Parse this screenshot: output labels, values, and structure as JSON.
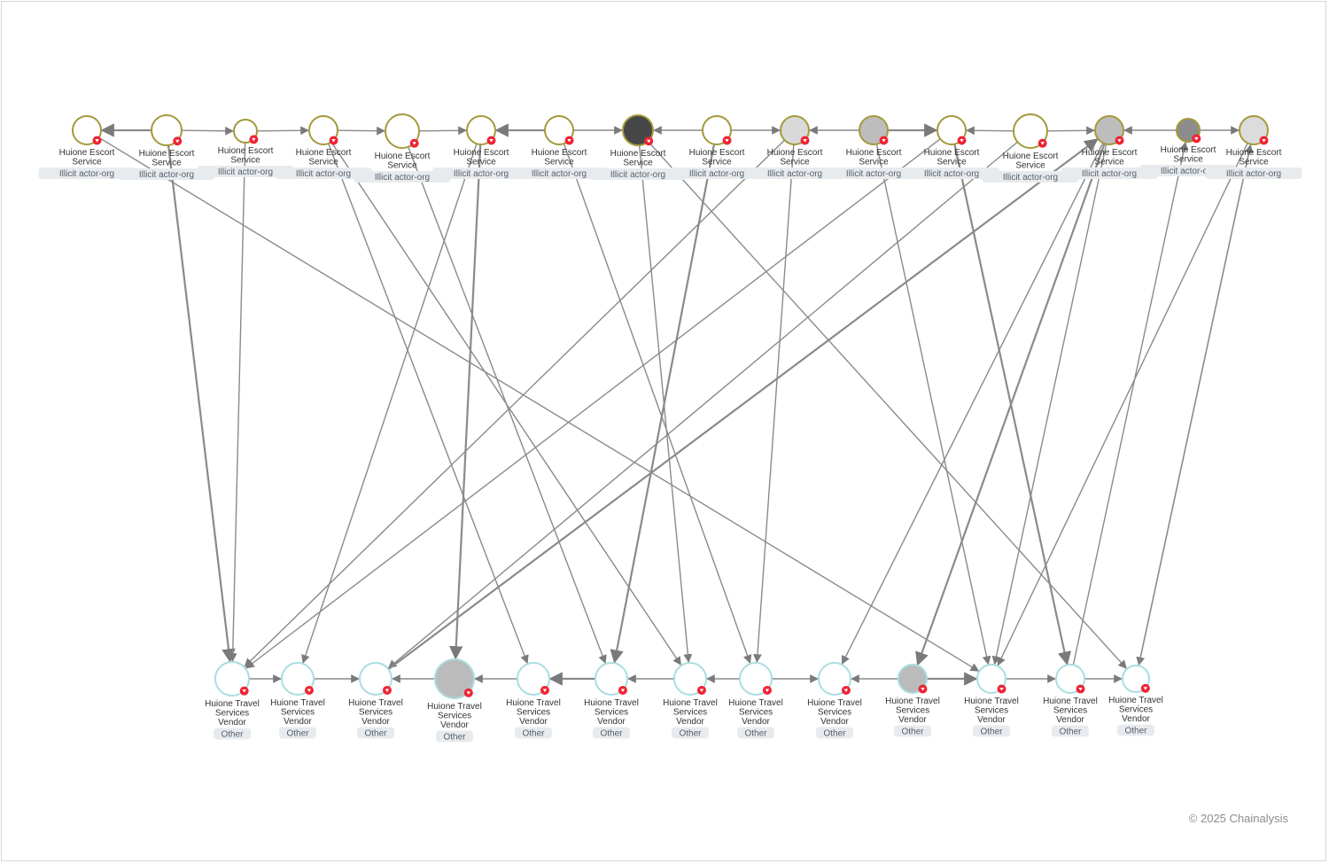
{
  "footer": {
    "copyright": "© 2025 Chainalysis"
  },
  "colors": {
    "escort_ring": "#a39a3a",
    "vendor_ring": "#a9dde0",
    "edge": "#8a8a8a",
    "badge_bg": "#e8ebee",
    "marker": "#ee2435"
  },
  "node_types": {
    "escort": {
      "name_lines": [
        "Huione Escort",
        "Service"
      ],
      "category": "Illicit actor-org"
    },
    "vendor": {
      "name_lines": [
        "Huione Travel",
        "Services",
        "Vendor"
      ],
      "category": "Other"
    }
  },
  "escort_nodes": [
    {
      "id": "e1",
      "fill": "#ffffff"
    },
    {
      "id": "e2",
      "fill": "#ffffff"
    },
    {
      "id": "e3",
      "fill": "#ffffff"
    },
    {
      "id": "e4",
      "fill": "#ffffff"
    },
    {
      "id": "e5",
      "fill": "#ffffff"
    },
    {
      "id": "e6",
      "fill": "#ffffff"
    },
    {
      "id": "e7",
      "fill": "#ffffff"
    },
    {
      "id": "e8",
      "fill": "#474747"
    },
    {
      "id": "e9",
      "fill": "#ffffff"
    },
    {
      "id": "e10",
      "fill": "#d9d9d9"
    },
    {
      "id": "e11",
      "fill": "#bdbdbd"
    },
    {
      "id": "e12",
      "fill": "#ffffff"
    },
    {
      "id": "e13",
      "fill": "#ffffff"
    },
    {
      "id": "e14",
      "fill": "#bdbdbd"
    },
    {
      "id": "e15",
      "fill": "#8c8c8c"
    },
    {
      "id": "e16",
      "fill": "#dcdcdc"
    }
  ],
  "vendor_nodes": [
    {
      "id": "v1",
      "fill": "#ffffff"
    },
    {
      "id": "v2",
      "fill": "#ffffff"
    },
    {
      "id": "v3",
      "fill": "#ffffff"
    },
    {
      "id": "v4",
      "fill": "#bbbbbb"
    },
    {
      "id": "v5",
      "fill": "#ffffff"
    },
    {
      "id": "v6",
      "fill": "#ffffff"
    },
    {
      "id": "v7",
      "fill": "#ffffff"
    },
    {
      "id": "v8",
      "fill": "#ffffff"
    },
    {
      "id": "v9",
      "fill": "#ffffff"
    },
    {
      "id": "v10",
      "fill": "#bbbbbb"
    },
    {
      "id": "v11",
      "fill": "#ffffff"
    },
    {
      "id": "v12",
      "fill": "#ffffff"
    },
    {
      "id": "v13",
      "fill": "#ffffff"
    }
  ],
  "edges": [
    [
      "e2",
      "e1"
    ],
    [
      "e2",
      "e3"
    ],
    [
      "e3",
      "e4"
    ],
    [
      "e4",
      "e5"
    ],
    [
      "e5",
      "e6"
    ],
    [
      "e7",
      "e6"
    ],
    [
      "e7",
      "e8"
    ],
    [
      "e9",
      "e8"
    ],
    [
      "e9",
      "e10"
    ],
    [
      "e11",
      "e10"
    ],
    [
      "e11",
      "e12"
    ],
    [
      "e13",
      "e12"
    ],
    [
      "e13",
      "e14"
    ],
    [
      "e15",
      "e14"
    ],
    [
      "e15",
      "e16"
    ],
    [
      "e2",
      "v1"
    ],
    [
      "e3",
      "v1"
    ],
    [
      "e1",
      "v11"
    ],
    [
      "e4",
      "v7"
    ],
    [
      "e5",
      "v6"
    ],
    [
      "e6",
      "v4"
    ],
    [
      "e6",
      "v2"
    ],
    [
      "e4",
      "v5"
    ],
    [
      "e8",
      "v7"
    ],
    [
      "e8",
      "v13"
    ],
    [
      "e9",
      "v6"
    ],
    [
      "e10",
      "v1"
    ],
    [
      "e11",
      "v11"
    ],
    [
      "e12",
      "v1"
    ],
    [
      "e13",
      "v3"
    ],
    [
      "e14",
      "v10"
    ],
    [
      "e14",
      "v9"
    ],
    [
      "e14",
      "v11"
    ],
    [
      "e16",
      "v11"
    ],
    [
      "e16",
      "v13"
    ],
    [
      "e12",
      "v12"
    ],
    [
      "e10",
      "v8"
    ],
    [
      "e7",
      "v8"
    ],
    [
      "v12",
      "e15"
    ],
    [
      "v13",
      "e16"
    ],
    [
      "v3",
      "e14"
    ],
    [
      "v1",
      "v2"
    ],
    [
      "v2",
      "v3"
    ],
    [
      "v4",
      "v3"
    ],
    [
      "v5",
      "v4"
    ],
    [
      "v6",
      "v5"
    ],
    [
      "v7",
      "v6"
    ],
    [
      "v8",
      "v7"
    ],
    [
      "v8",
      "v9"
    ],
    [
      "v10",
      "v9"
    ],
    [
      "v10",
      "v11"
    ],
    [
      "v11",
      "v12"
    ],
    [
      "v12",
      "v13"
    ]
  ]
}
